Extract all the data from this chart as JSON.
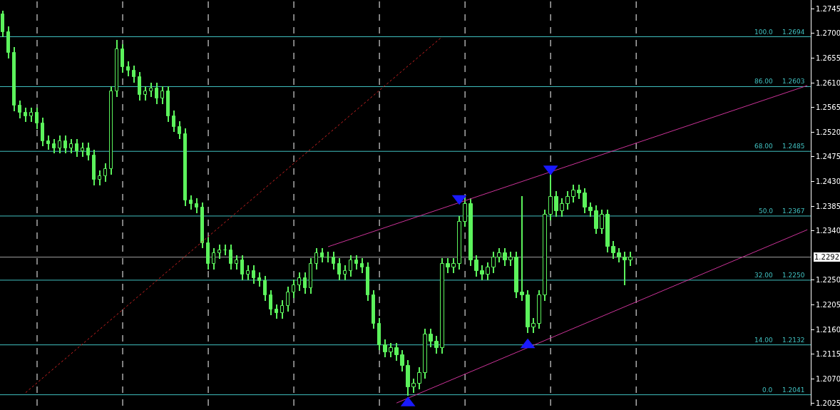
{
  "chart_data": {
    "type": "candlestick",
    "color": "#5cf25c",
    "categories": [
      null,
      null,
      null,
      null,
      null,
      null,
      null,
      null,
      null,
      null,
      null,
      null,
      null,
      null,
      null,
      null,
      null,
      null,
      null,
      null,
      null,
      null,
      null,
      null,
      null,
      null,
      null,
      null,
      null,
      null,
      null,
      null,
      null,
      null,
      null,
      null,
      null,
      null,
      null,
      null,
      null,
      null,
      null,
      null,
      null,
      null,
      null,
      null,
      null,
      null,
      null,
      null,
      null,
      null,
      null,
      null,
      null,
      null,
      null,
      null,
      null,
      null,
      null,
      null,
      null,
      null,
      null,
      null,
      null,
      null,
      null,
      null,
      null,
      null,
      null,
      null,
      null,
      null,
      null,
      null,
      null,
      null,
      null,
      null,
      null,
      null,
      null,
      null,
      null,
      null,
      null,
      null,
      null,
      null,
      null,
      null,
      null,
      null,
      null,
      null,
      null,
      null,
      null,
      null,
      null,
      null,
      null,
      null,
      null,
      null,
      null,
      null,
      null,
      null,
      null,
      null,
      null,
      null,
      null,
      null,
      null,
      null,
      null,
      null,
      null,
      null,
      null,
      null,
      null,
      null,
      null,
      null,
      null,
      null,
      null,
      null,
      null,
      null,
      null,
      null,
      null,
      null
    ],
    "ohlc": [
      [
        1.2735,
        1.2741,
        1.2693,
        1.2703
      ],
      [
        1.2703,
        1.2713,
        1.2655,
        1.2665
      ],
      [
        1.2665,
        1.2675,
        1.2558,
        1.2568
      ],
      [
        1.2568,
        1.2578,
        1.2545,
        1.2555
      ],
      [
        1.2555,
        1.2565,
        1.2539,
        1.2549
      ],
      [
        1.2549,
        1.2565,
        1.2539,
        1.2555
      ],
      [
        1.2555,
        1.2565,
        1.2526,
        1.2536
      ],
      [
        1.2536,
        1.2546,
        1.2494,
        1.2504
      ],
      [
        1.2504,
        1.2514,
        1.2488,
        1.2498
      ],
      [
        1.2498,
        1.2508,
        1.2481,
        1.2491
      ],
      [
        1.2491,
        1.2514,
        1.2481,
        1.2504
      ],
      [
        1.2504,
        1.2514,
        1.2481,
        1.2491
      ],
      [
        1.2491,
        1.2508,
        1.2481,
        1.2498
      ],
      [
        1.2498,
        1.2508,
        1.2475,
        1.2485
      ],
      [
        1.2485,
        1.2501,
        1.2475,
        1.2491
      ],
      [
        1.2491,
        1.2501,
        1.2468,
        1.2478
      ],
      [
        1.2478,
        1.2488,
        1.2423,
        1.2433
      ],
      [
        1.2433,
        1.245,
        1.2423,
        1.244
      ],
      [
        1.244,
        1.2463,
        1.243,
        1.2453
      ],
      [
        1.2453,
        1.2604,
        1.2443,
        1.2594
      ],
      [
        1.2594,
        1.2688,
        1.2584,
        1.2671
      ],
      [
        1.2671,
        1.2681,
        1.2629,
        1.2639
      ],
      [
        1.2639,
        1.2649,
        1.2622,
        1.2632
      ],
      [
        1.2632,
        1.2642,
        1.261,
        1.262
      ],
      [
        1.262,
        1.263,
        1.2578,
        1.2588
      ],
      [
        1.2588,
        1.2604,
        1.2578,
        1.2594
      ],
      [
        1.2594,
        1.261,
        1.2584,
        1.26
      ],
      [
        1.26,
        1.261,
        1.2571,
        1.2581
      ],
      [
        1.2581,
        1.2604,
        1.2571,
        1.2594
      ],
      [
        1.2594,
        1.2604,
        1.2539,
        1.2549
      ],
      [
        1.2549,
        1.2559,
        1.252,
        1.253
      ],
      [
        1.253,
        1.254,
        1.2507,
        1.2517
      ],
      [
        1.2517,
        1.2527,
        1.2385,
        1.2395
      ],
      [
        1.2395,
        1.2405,
        1.2379,
        1.2389
      ],
      [
        1.2389,
        1.2399,
        1.2372,
        1.2382
      ],
      [
        1.2382,
        1.2392,
        1.2308,
        1.2318
      ],
      [
        1.2318,
        1.2328,
        1.227,
        1.228
      ],
      [
        1.228,
        1.2309,
        1.227,
        1.2299
      ],
      [
        1.2299,
        1.2315,
        1.2289,
        1.2305
      ],
      [
        1.2305,
        1.2315,
        1.2295,
        1.2305
      ],
      [
        1.2305,
        1.2315,
        1.227,
        1.228
      ],
      [
        1.228,
        1.2296,
        1.227,
        1.2286
      ],
      [
        1.2286,
        1.2296,
        1.225,
        1.226
      ],
      [
        1.226,
        1.2277,
        1.225,
        1.2267
      ],
      [
        1.2267,
        1.2277,
        1.2244,
        1.2254
      ],
      [
        1.2254,
        1.2264,
        1.2238,
        1.2248
      ],
      [
        1.2248,
        1.2258,
        1.2212,
        1.2222
      ],
      [
        1.2222,
        1.2232,
        1.2186,
        1.2196
      ],
      [
        1.2196,
        1.2206,
        1.218,
        1.219
      ],
      [
        1.219,
        1.2213,
        1.218,
        1.2203
      ],
      [
        1.2203,
        1.2238,
        1.2193,
        1.2228
      ],
      [
        1.2228,
        1.2251,
        1.2218,
        1.2241
      ],
      [
        1.2241,
        1.2264,
        1.2231,
        1.2254
      ],
      [
        1.2254,
        1.2264,
        1.2225,
        1.2235
      ],
      [
        1.2235,
        1.229,
        1.2225,
        1.228
      ],
      [
        1.228,
        1.2309,
        1.227,
        1.2299
      ],
      [
        1.2299,
        1.2309,
        1.2282,
        1.2292
      ],
      [
        1.2292,
        1.2302,
        1.2282,
        1.2292
      ],
      [
        1.2292,
        1.2302,
        1.227,
        1.228
      ],
      [
        1.228,
        1.229,
        1.225,
        1.226
      ],
      [
        1.226,
        1.2277,
        1.225,
        1.2267
      ],
      [
        1.2267,
        1.2296,
        1.2257,
        1.2286
      ],
      [
        1.2286,
        1.2296,
        1.227,
        1.228
      ],
      [
        1.228,
        1.229,
        1.2263,
        1.2273
      ],
      [
        1.2273,
        1.2283,
        1.2212,
        1.2222
      ],
      [
        1.2222,
        1.2232,
        1.2161,
        1.2171
      ],
      [
        1.2171,
        1.2181,
        1.2122,
        1.2132
      ],
      [
        1.2132,
        1.2142,
        1.2109,
        1.2119
      ],
      [
        1.2119,
        1.2136,
        1.2109,
        1.2126
      ],
      [
        1.2126,
        1.2136,
        1.2103,
        1.2113
      ],
      [
        1.2113,
        1.2123,
        1.2084,
        1.2094
      ],
      [
        1.2094,
        1.2104,
        1.2039,
        1.2055
      ],
      [
        1.2055,
        1.2071,
        1.2045,
        1.2061
      ],
      [
        1.2061,
        1.2091,
        1.2051,
        1.2081
      ],
      [
        1.2081,
        1.2161,
        1.2071,
        1.2151
      ],
      [
        1.2151,
        1.2161,
        1.2128,
        1.2138
      ],
      [
        1.2138,
        1.2148,
        1.2116,
        1.2126
      ],
      [
        1.2126,
        1.229,
        1.2116,
        1.228
      ],
      [
        1.228,
        1.229,
        1.2263,
        1.2273
      ],
      [
        1.2273,
        1.229,
        1.2263,
        1.228
      ],
      [
        1.228,
        1.2367,
        1.227,
        1.2357
      ],
      [
        1.2357,
        1.2399,
        1.2347,
        1.2389
      ],
      [
        1.2389,
        1.2399,
        1.2276,
        1.2286
      ],
      [
        1.2286,
        1.2296,
        1.2257,
        1.2267
      ],
      [
        1.2267,
        1.2277,
        1.225,
        1.226
      ],
      [
        1.226,
        1.2283,
        1.225,
        1.2273
      ],
      [
        1.2273,
        1.2302,
        1.2263,
        1.2292
      ],
      [
        1.2292,
        1.2309,
        1.2282,
        1.2299
      ],
      [
        1.2299,
        1.2309,
        1.2276,
        1.2286
      ],
      [
        1.2286,
        1.2302,
        1.2276,
        1.2292
      ],
      [
        1.2292,
        1.2302,
        1.2218,
        1.2228
      ],
      [
        1.2228,
        1.2404,
        1.2212,
        1.2222
      ],
      [
        1.2222,
        1.2232,
        1.2154,
        1.2164
      ],
      [
        1.2164,
        1.2181,
        1.2154,
        1.2171
      ],
      [
        1.2171,
        1.2232,
        1.2161,
        1.2222
      ],
      [
        1.2222,
        1.2379,
        1.2212,
        1.2369
      ],
      [
        1.2369,
        1.2442,
        1.2359,
        1.2402
      ],
      [
        1.2402,
        1.2412,
        1.2366,
        1.2376
      ],
      [
        1.2376,
        1.2399,
        1.2366,
        1.2389
      ],
      [
        1.2389,
        1.2412,
        1.2379,
        1.2402
      ],
      [
        1.2402,
        1.2424,
        1.2392,
        1.2414
      ],
      [
        1.2414,
        1.2424,
        1.2398,
        1.2408
      ],
      [
        1.2408,
        1.2418,
        1.2372,
        1.2382
      ],
      [
        1.2382,
        1.2392,
        1.2366,
        1.2376
      ],
      [
        1.2376,
        1.2386,
        1.2334,
        1.2344
      ],
      [
        1.2344,
        1.2379,
        1.2334,
        1.2369
      ],
      [
        1.2369,
        1.2379,
        1.2301,
        1.2311
      ],
      [
        1.2311,
        1.2321,
        1.2289,
        1.2299
      ],
      [
        1.2299,
        1.2309,
        1.2282,
        1.2292
      ],
      [
        1.2292,
        1.2302,
        1.2241,
        1.2286
      ],
      [
        1.2286,
        1.2302,
        1.2276,
        1.2292
      ],
      null,
      null,
      null,
      null,
      null,
      null,
      null,
      null,
      null,
      null,
      null,
      null,
      null,
      null,
      null,
      null,
      null,
      null,
      null,
      null,
      null,
      null,
      null,
      null,
      null,
      null,
      null,
      null,
      null,
      null,
      null
    ],
    "series": [
      {
        "type": "line",
        "color": "#cc2222",
        "line_style": "dotted",
        "values": [
          null,
          null,
          null,
          null,
          1.2045,
          null,
          null,
          null,
          null,
          null,
          null,
          null,
          null,
          null,
          null,
          null,
          null,
          null,
          null,
          null,
          null,
          null,
          null,
          null,
          null,
          null,
          null,
          null,
          null,
          null,
          null,
          null,
          null,
          null,
          null,
          null,
          null,
          null,
          null,
          null,
          null,
          null,
          null,
          null,
          null,
          null,
          null,
          null,
          null,
          null,
          null,
          null,
          null,
          null,
          null,
          null,
          null,
          null,
          null,
          null,
          null,
          null,
          null,
          null,
          null,
          null,
          null,
          null,
          null,
          null,
          null,
          null,
          null,
          null,
          null,
          null,
          null,
          1.2694,
          null,
          null,
          null,
          null,
          null,
          null,
          null,
          null,
          null,
          null,
          null,
          null,
          null,
          null,
          null,
          null,
          null,
          null,
          null,
          null,
          null,
          null,
          null,
          null,
          null,
          null,
          null,
          null,
          null,
          null,
          null,
          null,
          null,
          null,
          null,
          null,
          null,
          null,
          null,
          null,
          null,
          null,
          null,
          null,
          null,
          null,
          null,
          null,
          null,
          null,
          null,
          null,
          null,
          null,
          null,
          null,
          null,
          null,
          null,
          null,
          null,
          null,
          null,
          null
        ]
      },
      {
        "type": "line",
        "color": "#cc3399",
        "line_style": "solid",
        "values": [
          null,
          null,
          null,
          null,
          null,
          null,
          null,
          null,
          null,
          null,
          null,
          null,
          null,
          null,
          null,
          null,
          null,
          null,
          null,
          null,
          null,
          null,
          null,
          null,
          null,
          null,
          null,
          null,
          null,
          null,
          null,
          null,
          null,
          null,
          null,
          null,
          null,
          null,
          null,
          null,
          null,
          null,
          null,
          null,
          null,
          null,
          null,
          null,
          null,
          null,
          null,
          null,
          null,
          null,
          null,
          null,
          null,
          1.2311,
          null,
          null,
          null,
          null,
          null,
          null,
          null,
          null,
          null,
          null,
          null,
          null,
          null,
          null,
          null,
          null,
          null,
          null,
          null,
          null,
          null,
          null,
          null,
          null,
          null,
          null,
          null,
          null,
          null,
          null,
          null,
          null,
          null,
          null,
          null,
          null,
          null,
          null,
          null,
          null,
          null,
          null,
          null,
          null,
          null,
          null,
          null,
          null,
          null,
          null,
          null,
          null,
          null,
          null,
          null,
          null,
          null,
          null,
          null,
          null,
          null,
          null,
          null,
          null,
          null,
          null,
          null,
          null,
          null,
          null,
          null,
          null,
          null,
          null,
          null,
          null,
          null,
          null,
          null,
          null,
          null,
          null,
          null,
          1.2605
        ]
      },
      {
        "type": "line",
        "color": "#cc3399",
        "line_style": "solid",
        "values": [
          null,
          null,
          null,
          null,
          null,
          null,
          null,
          null,
          null,
          null,
          null,
          null,
          null,
          null,
          null,
          null,
          null,
          null,
          null,
          null,
          null,
          null,
          null,
          null,
          null,
          null,
          null,
          null,
          null,
          null,
          null,
          null,
          null,
          null,
          null,
          null,
          null,
          null,
          null,
          null,
          null,
          null,
          null,
          null,
          null,
          null,
          null,
          null,
          null,
          null,
          null,
          null,
          null,
          null,
          null,
          null,
          null,
          null,
          null,
          null,
          null,
          null,
          null,
          null,
          null,
          null,
          null,
          null,
          null,
          1.2026,
          null,
          null,
          null,
          null,
          null,
          null,
          null,
          null,
          null,
          null,
          null,
          null,
          null,
          null,
          null,
          null,
          null,
          null,
          null,
          null,
          null,
          null,
          null,
          null,
          null,
          null,
          null,
          null,
          null,
          null,
          null,
          null,
          null,
          null,
          null,
          null,
          null,
          null,
          null,
          null,
          null,
          null,
          null,
          null,
          null,
          null,
          null,
          null,
          null,
          null,
          null,
          null,
          null,
          null,
          null,
          null,
          null,
          null,
          null,
          null,
          null,
          null,
          null,
          null,
          null,
          null,
          null,
          null,
          null,
          null,
          null,
          1.2342
        ]
      },
      {
        "type": "scatter",
        "color": "#1a1aff",
        "marker": "triangle",
        "values": [
          null,
          null,
          null,
          null,
          null,
          null,
          null,
          null,
          null,
          null,
          null,
          null,
          null,
          null,
          null,
          null,
          null,
          null,
          null,
          null,
          null,
          null,
          null,
          null,
          null,
          null,
          null,
          null,
          null,
          null,
          null,
          null,
          null,
          null,
          null,
          null,
          null,
          null,
          null,
          null,
          null,
          null,
          null,
          null,
          null,
          null,
          null,
          null,
          null,
          null,
          null,
          null,
          null,
          null,
          null,
          null,
          null,
          null,
          null,
          null,
          null,
          null,
          null,
          null,
          null,
          null,
          null,
          null,
          null,
          null,
          null,
          1.2026,
          null,
          null,
          null,
          null,
          null,
          null,
          null,
          null,
          null,
          null,
          null,
          null,
          null,
          null,
          null,
          null,
          null,
          null,
          null,
          null,
          1.2132,
          null,
          null,
          null,
          null,
          null,
          null,
          null,
          null,
          null,
          null,
          null,
          null,
          null,
          null,
          null,
          null,
          null,
          null,
          null,
          null,
          null,
          null,
          null,
          null,
          null,
          null,
          null,
          null,
          null,
          null,
          null,
          null,
          null,
          null,
          null,
          null,
          null,
          null,
          null,
          null,
          null,
          null,
          null,
          null,
          null,
          null,
          null,
          null,
          null
        ]
      },
      {
        "type": "scatter",
        "color": "#1a1aff",
        "marker": "triangle-down",
        "values": [
          null,
          null,
          null,
          null,
          null,
          null,
          null,
          null,
          null,
          null,
          null,
          null,
          null,
          null,
          null,
          null,
          null,
          null,
          null,
          null,
          null,
          null,
          null,
          null,
          null,
          null,
          null,
          null,
          null,
          null,
          null,
          null,
          null,
          null,
          null,
          null,
          null,
          null,
          null,
          null,
          null,
          null,
          null,
          null,
          null,
          null,
          null,
          null,
          null,
          null,
          null,
          null,
          null,
          null,
          null,
          null,
          null,
          null,
          null,
          null,
          null,
          null,
          null,
          null,
          null,
          null,
          null,
          null,
          null,
          null,
          null,
          null,
          null,
          null,
          null,
          null,
          null,
          null,
          null,
          null,
          1.2399,
          null,
          null,
          null,
          null,
          null,
          null,
          null,
          null,
          null,
          null,
          null,
          null,
          null,
          null,
          null,
          1.2453,
          null,
          null,
          null,
          null,
          null,
          null,
          null,
          null,
          null,
          null,
          null,
          null,
          null,
          null,
          null,
          null,
          null,
          null,
          null,
          null,
          null,
          null,
          null,
          null,
          null,
          null,
          null,
          null,
          null,
          null,
          null,
          null,
          null,
          null,
          null,
          null,
          null,
          null,
          null,
          null,
          null,
          null,
          null,
          null,
          null
        ]
      }
    ],
    "annotations": [
      {
        "text": "100.0",
        "y": 1.2694
      },
      {
        "text": "86.00",
        "y": 1.2603
      },
      {
        "text": "68.00",
        "y": 1.2485
      },
      {
        "text": "50.0",
        "y": 1.2367
      },
      {
        "text": "32.00",
        "y": 1.225
      },
      {
        "text": "14.00",
        "y": 1.2132
      },
      {
        "text": "0.0",
        "y": 1.2041
      }
    ],
    "ref_lines": [
      {
        "axis": "y",
        "value": 1.2694,
        "label": "1.2694",
        "color": "#40c0c0"
      },
      {
        "axis": "y",
        "value": 1.2603,
        "label": "1.2603",
        "color": "#40c0c0"
      },
      {
        "axis": "y",
        "value": 1.2485,
        "label": "1.2485",
        "color": "#40c0c0"
      },
      {
        "axis": "y",
        "value": 1.2367,
        "label": "1.2367",
        "color": "#40c0c0"
      },
      {
        "axis": "y",
        "value": 1.225,
        "label": "1.2250",
        "color": "#40c0c0"
      },
      {
        "axis": "y",
        "value": 1.2132,
        "label": "1.2132",
        "color": "#40c0c0"
      },
      {
        "axis": "y",
        "value": 1.2041,
        "label": "1.2041",
        "color": "#40c0c0"
      },
      {
        "axis": "y",
        "value": 1.2292,
        "label": "1.2292",
        "color": "#a0a0a0",
        "line_style": "solid"
      }
    ],
    "ylim": [
      1.2021,
      1.2761
    ],
    "yticks": [
      1.2025,
      {
        "value": 1.207,
        "label": "1.2070"
      },
      1.2115,
      {
        "value": 1.216,
        "label": "1.2160"
      },
      1.2205,
      {
        "value": 1.225,
        "label": "1.2250"
      },
      {
        "value": 1.234,
        "label": "1.2340"
      },
      1.2385,
      {
        "value": 1.243,
        "label": "1.2430"
      },
      1.2475,
      {
        "value": 1.252,
        "label": "1.2520"
      },
      1.2565,
      {
        "value": 1.261,
        "label": "1.2610"
      },
      1.2655,
      {
        "value": 1.27,
        "label": "1.2700"
      },
      1.2745
    ],
    "grid": "x",
    "tick_labels": "y"
  }
}
